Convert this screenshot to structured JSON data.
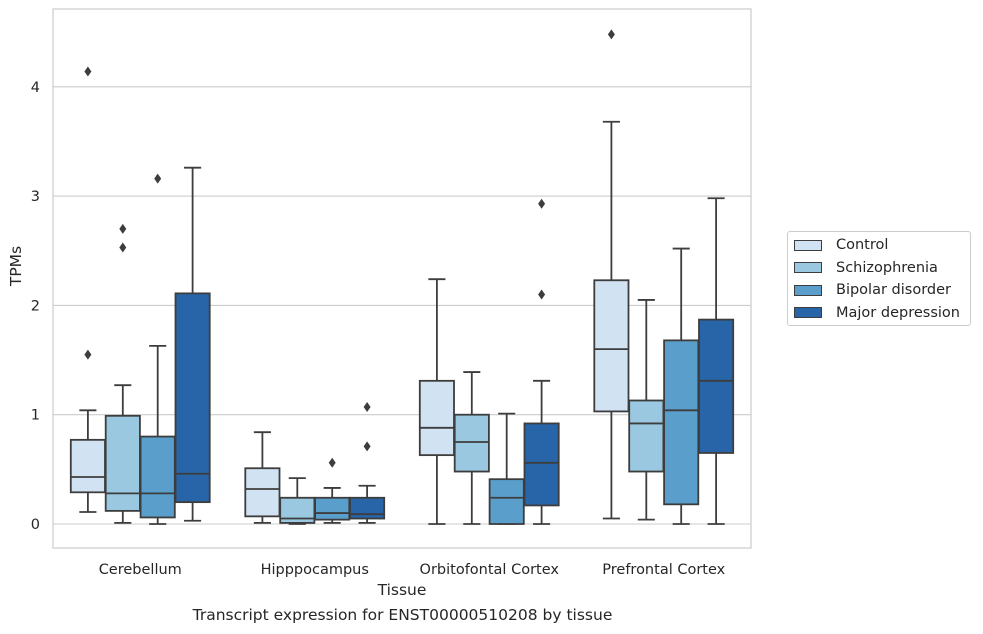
{
  "caption": "Transcript expression for ENST00000510208 by tissue",
  "chart_data": {
    "type": "box",
    "xlabel": "Tissue",
    "ylabel": "TPMs",
    "ylim": [
      -0.22,
      4.7
    ],
    "yticks": [
      0,
      1,
      2,
      3,
      4
    ],
    "grid": "horizontal",
    "legend_position": "right",
    "categories": [
      "Cerebellum",
      "Hipppocampus",
      "Orbitofontal Cortex",
      "Prefrontal Cortex"
    ],
    "series": [
      {
        "name": "Control",
        "color": "#d1e2f2",
        "boxes": [
          {
            "whislo": 0.11,
            "q1": 0.29,
            "med": 0.43,
            "q3": 0.77,
            "whishi": 1.04,
            "fliers": [
              1.55,
              4.14
            ]
          },
          {
            "whislo": 0.01,
            "q1": 0.07,
            "med": 0.32,
            "q3": 0.51,
            "whishi": 0.84,
            "fliers": []
          },
          {
            "whislo": 0.0,
            "q1": 0.63,
            "med": 0.88,
            "q3": 1.31,
            "whishi": 2.24,
            "fliers": []
          },
          {
            "whislo": 0.05,
            "q1": 1.03,
            "med": 1.6,
            "q3": 2.23,
            "whishi": 3.68,
            "fliers": [
              4.48
            ]
          }
        ]
      },
      {
        "name": "Schizophrenia",
        "color": "#9ac8e0",
        "boxes": [
          {
            "whislo": 0.01,
            "q1": 0.12,
            "med": 0.28,
            "q3": 0.99,
            "whishi": 1.27,
            "fliers": [
              2.53,
              2.7
            ]
          },
          {
            "whislo": 0.0,
            "q1": 0.01,
            "med": 0.05,
            "q3": 0.24,
            "whishi": 0.42,
            "fliers": []
          },
          {
            "whislo": 0.0,
            "q1": 0.48,
            "med": 0.75,
            "q3": 1.0,
            "whishi": 1.39,
            "fliers": []
          },
          {
            "whislo": 0.04,
            "q1": 0.48,
            "med": 0.92,
            "q3": 1.13,
            "whishi": 2.05,
            "fliers": []
          }
        ]
      },
      {
        "name": "Bipolar disorder",
        "color": "#5a9fcc",
        "boxes": [
          {
            "whislo": 0.0,
            "q1": 0.06,
            "med": 0.28,
            "q3": 0.8,
            "whishi": 1.63,
            "fliers": [
              3.16
            ]
          },
          {
            "whislo": 0.01,
            "q1": 0.04,
            "med": 0.1,
            "q3": 0.24,
            "whishi": 0.33,
            "fliers": [
              0.56
            ]
          },
          {
            "whislo": 0.0,
            "q1": 0.0,
            "med": 0.24,
            "q3": 0.41,
            "whishi": 1.01,
            "fliers": []
          },
          {
            "whislo": 0.0,
            "q1": 0.18,
            "med": 1.04,
            "q3": 1.68,
            "whishi": 2.52,
            "fliers": []
          }
        ]
      },
      {
        "name": "Major depression",
        "color": "#2865a8",
        "boxes": [
          {
            "whislo": 0.03,
            "q1": 0.2,
            "med": 0.46,
            "q3": 2.11,
            "whishi": 3.26,
            "fliers": []
          },
          {
            "whislo": 0.01,
            "q1": 0.05,
            "med": 0.09,
            "q3": 0.24,
            "whishi": 0.35,
            "fliers": [
              0.71,
              1.07
            ]
          },
          {
            "whislo": 0.0,
            "q1": 0.17,
            "med": 0.56,
            "q3": 0.92,
            "whishi": 1.31,
            "fliers": [
              2.1,
              2.93
            ]
          },
          {
            "whislo": 0.0,
            "q1": 0.65,
            "med": 1.31,
            "q3": 1.87,
            "whishi": 2.98,
            "fliers": []
          }
        ]
      }
    ]
  }
}
